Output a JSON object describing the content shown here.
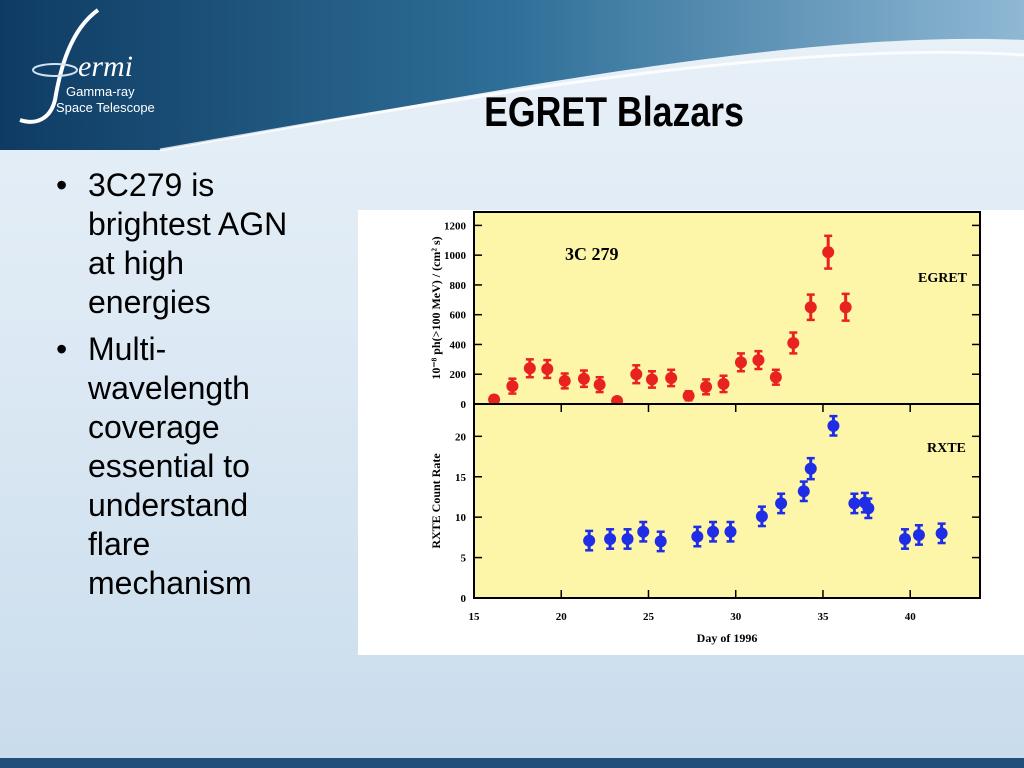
{
  "header": {
    "logo": "ermi",
    "logo_subtitle_1": "Gamma-ray",
    "logo_subtitle_2": "Space Telescope",
    "title": "EGRET Blazars"
  },
  "bullets": [
    "3C279 is brightest AGN at high energies",
    "Multi-wavelength coverage essential to understand flare mechanism"
  ],
  "chart_data": [
    {
      "type": "scatter",
      "ylabel": "10⁻⁸ ph(>100 MeV) / (cm² s)",
      "annotations": [
        "3C 279",
        "EGRET"
      ],
      "xlim": [
        15,
        44
      ],
      "ylim": [
        0,
        1290
      ],
      "yticks": [
        0,
        200,
        400,
        600,
        800,
        1000,
        1200
      ],
      "series": [
        {
          "name": "EGRET",
          "color": "#e8231f",
          "x": [
            16.15,
            17.2,
            18.2,
            19.2,
            20.2,
            21.3,
            22.2,
            23.2,
            24.3,
            25.2,
            26.3,
            27.3,
            28.3,
            29.3,
            30.3,
            31.3,
            32.3,
            33.3,
            34.3,
            35.3,
            36.3
          ],
          "values": [
            30,
            120,
            240,
            235,
            155,
            170,
            130,
            20,
            200,
            165,
            175,
            55,
            115,
            135,
            280,
            295,
            180,
            410,
            650,
            1020,
            650
          ],
          "errors": [
            25,
            50,
            60,
            60,
            50,
            55,
            50,
            20,
            60,
            55,
            55,
            30,
            50,
            55,
            60,
            60,
            50,
            70,
            85,
            110,
            90
          ]
        }
      ]
    },
    {
      "type": "scatter",
      "xlabel": "Day of 1996",
      "ylabel": "RXTE Count Rate",
      "annotations": [
        "RXTE"
      ],
      "xlim": [
        15,
        44
      ],
      "ylim": [
        0,
        24
      ],
      "xticks": [
        15,
        20,
        25,
        30,
        35,
        40
      ],
      "yticks": [
        0,
        5,
        10,
        15,
        20
      ],
      "series": [
        {
          "name": "RXTE",
          "color": "#1f2ee6",
          "x": [
            21.6,
            22.8,
            23.8,
            24.7,
            25.7,
            27.8,
            28.7,
            29.7,
            31.5,
            32.6,
            33.9,
            34.3,
            35.6,
            36.8,
            37.4,
            37.6,
            39.7,
            40.5,
            41.8
          ],
          "values": [
            7.1,
            7.3,
            7.3,
            8.2,
            7.0,
            7.6,
            8.2,
            8.2,
            10.1,
            11.7,
            13.2,
            16.0,
            21.3,
            11.7,
            11.8,
            11.1,
            7.3,
            7.8,
            8.0
          ],
          "errors": [
            1.2,
            1.2,
            1.2,
            1.2,
            1.2,
            1.2,
            1.2,
            1.2,
            1.2,
            1.2,
            1.2,
            1.3,
            1.2,
            1.2,
            1.2,
            1.2,
            1.2,
            1.2,
            1.2
          ]
        }
      ]
    }
  ]
}
